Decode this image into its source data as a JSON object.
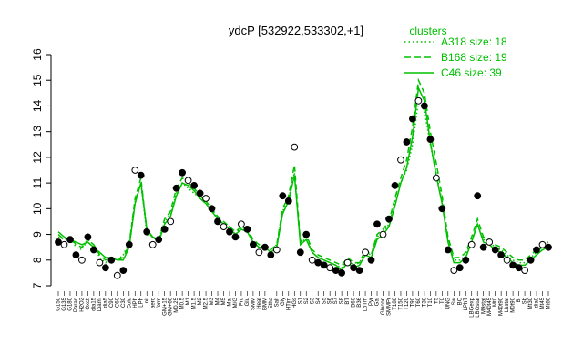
{
  "chart_data": {
    "type": "line",
    "title": "ydcP [532922,533302,+1]",
    "ylim": [
      7,
      16
    ],
    "yticks": [
      7,
      8,
      9,
      10,
      11,
      12,
      13,
      14,
      15,
      16
    ],
    "xticklabels": [
      "G150",
      "G135",
      "G180",
      "Paraq",
      "H2O2",
      "Oxctl",
      "dia15",
      "Diami",
      "dia5",
      "C90",
      "C60",
      "C30",
      "Cold",
      "HPh",
      "LPh",
      "nit",
      "aero",
      "ferm",
      "GM+15",
      "GM+60",
      "M0.25",
      "M0.5",
      "M1",
      "M1.5",
      "M2",
      "M2.5",
      "M3",
      "M4",
      "M5",
      "Mal",
      "M/G",
      "Fru",
      "Glu",
      "SMM",
      "Heat",
      "BMM",
      "Etha",
      "Salt",
      "Gly",
      "HTim",
      "HGs",
      "S1",
      "S2",
      "S3",
      "S4",
      "S5",
      "S6",
      "S7",
      "S8",
      "BT",
      "B60",
      "B36",
      "LoTm",
      "Pyr",
      "Gal",
      "Glucon",
      "SMMPr",
      "T180",
      "T150",
      "T120",
      "T90",
      "T60",
      "T30",
      "T10",
      "T5",
      "T0",
      "UNG",
      "Sw",
      "BC",
      "LPhT",
      "LBGexp",
      "LBGstat",
      "M9stat",
      "M40t45",
      "Mt0",
      "M40t90",
      "Lbstat",
      "M0t90",
      "Bl",
      "Sb",
      "Mt30",
      "dia0",
      "Mt45",
      "Mt60"
    ],
    "legend": {
      "title": "clusters",
      "position": "top-right",
      "entries": [
        {
          "name": "A318 size: 18",
          "style": "dotted"
        },
        {
          "name": "B168 size: 19",
          "style": "dashed"
        },
        {
          "name": "C46 size: 39",
          "style": "solid"
        }
      ]
    },
    "line_color": "#00c000",
    "point_color": "#000000",
    "series": [
      {
        "name": "A318",
        "style": "dotted",
        "values": [
          8.9,
          8.8,
          8.9,
          8.5,
          8.4,
          8.8,
          8.6,
          8.1,
          7.9,
          8.1,
          8.0,
          8.2,
          8.7,
          10.3,
          11.0,
          9.0,
          8.9,
          8.8,
          9.5,
          9.8,
          10.6,
          11.0,
          10.8,
          10.6,
          10.4,
          10.2,
          10.0,
          9.6,
          9.4,
          9.3,
          9.0,
          9.3,
          9.2,
          8.7,
          8.5,
          8.6,
          8.4,
          8.6,
          9.9,
          10.4,
          11.4,
          8.6,
          8.9,
          8.3,
          8.1,
          8.0,
          7.9,
          7.8,
          7.7,
          8.0,
          7.8,
          7.9,
          8.3,
          8.2,
          8.9,
          9.1,
          9.4,
          10.2,
          11.0,
          11.5,
          12.5,
          14.2,
          13.8,
          12.5,
          11.4,
          10.3,
          8.8,
          8.0,
          8.0,
          8.2,
          8.8,
          9.4,
          8.8,
          8.7,
          8.5,
          8.4,
          8.2,
          8.0,
          7.9,
          7.9,
          8.1,
          8.3,
          8.5,
          8.6
        ]
      },
      {
        "name": "B168",
        "style": "dashed",
        "values": [
          9.0,
          8.8,
          8.9,
          8.6,
          8.5,
          8.8,
          8.6,
          8.2,
          8.0,
          8.1,
          8.0,
          8.1,
          8.6,
          10.4,
          11.2,
          9.1,
          8.9,
          8.8,
          9.6,
          9.9,
          10.8,
          11.2,
          11.0,
          10.8,
          10.5,
          10.3,
          10.0,
          9.7,
          9.5,
          9.3,
          9.1,
          9.3,
          9.2,
          8.8,
          8.6,
          8.6,
          8.4,
          8.6,
          10.0,
          10.5,
          11.7,
          8.7,
          9.0,
          8.4,
          8.2,
          8.1,
          8.0,
          7.9,
          7.8,
          8.1,
          7.9,
          7.9,
          8.4,
          8.2,
          9.0,
          9.2,
          9.5,
          10.4,
          11.2,
          11.9,
          13.2,
          15.0,
          14.5,
          13.0,
          11.8,
          10.5,
          8.9,
          8.1,
          8.1,
          8.3,
          8.9,
          9.6,
          8.9,
          8.8,
          8.6,
          8.5,
          8.3,
          8.1,
          8.0,
          8.0,
          8.2,
          8.4,
          8.6,
          8.7
        ]
      },
      {
        "name": "C46",
        "style": "solid",
        "values": [
          9.1,
          8.9,
          8.8,
          8.7,
          8.6,
          8.7,
          8.5,
          8.3,
          8.1,
          8.1,
          8.0,
          8.0,
          8.5,
          10.2,
          11.0,
          9.2,
          8.9,
          8.7,
          9.4,
          9.7,
          10.5,
          11.0,
          10.9,
          10.7,
          10.4,
          10.2,
          9.9,
          9.6,
          9.4,
          9.2,
          9.0,
          9.2,
          9.1,
          8.7,
          8.5,
          8.5,
          8.3,
          8.5,
          9.8,
          10.3,
          11.3,
          8.6,
          8.8,
          8.3,
          8.1,
          8.0,
          7.9,
          7.8,
          7.6,
          7.9,
          7.7,
          7.8,
          8.2,
          8.1,
          8.8,
          9.0,
          9.3,
          10.1,
          11.0,
          11.6,
          12.8,
          14.7,
          14.2,
          12.6,
          11.3,
          10.2,
          8.7,
          7.9,
          7.9,
          8.1,
          8.7,
          9.4,
          8.7,
          8.6,
          8.4,
          8.3,
          8.1,
          7.9,
          7.8,
          7.8,
          8.0,
          8.2,
          8.4,
          8.5
        ]
      },
      {
        "name": "points",
        "style": "points",
        "values": [
          8.7,
          8.6,
          8.8,
          8.2,
          8.0,
          8.9,
          8.4,
          7.9,
          7.7,
          8.0,
          7.4,
          7.6,
          8.6,
          11.5,
          11.3,
          9.1,
          8.6,
          8.8,
          9.2,
          9.5,
          10.8,
          11.4,
          11.1,
          10.9,
          10.6,
          10.4,
          10.0,
          9.5,
          9.3,
          9.1,
          8.9,
          9.4,
          9.2,
          8.6,
          8.3,
          8.5,
          8.2,
          8.4,
          10.5,
          10.3,
          12.4,
          8.3,
          9.0,
          8.0,
          7.9,
          7.8,
          7.7,
          7.6,
          7.5,
          7.9,
          7.7,
          7.6,
          8.3,
          8.0,
          9.4,
          9.0,
          9.6,
          10.9,
          11.9,
          12.6,
          13.5,
          14.2,
          14.0,
          12.7,
          11.2,
          10.0,
          8.4,
          7.6,
          7.7,
          8.0,
          8.6,
          10.5,
          8.5,
          8.7,
          8.4,
          8.2,
          8.0,
          7.8,
          7.7,
          7.6,
          8.0,
          8.4,
          8.6,
          8.5
        ]
      }
    ]
  }
}
